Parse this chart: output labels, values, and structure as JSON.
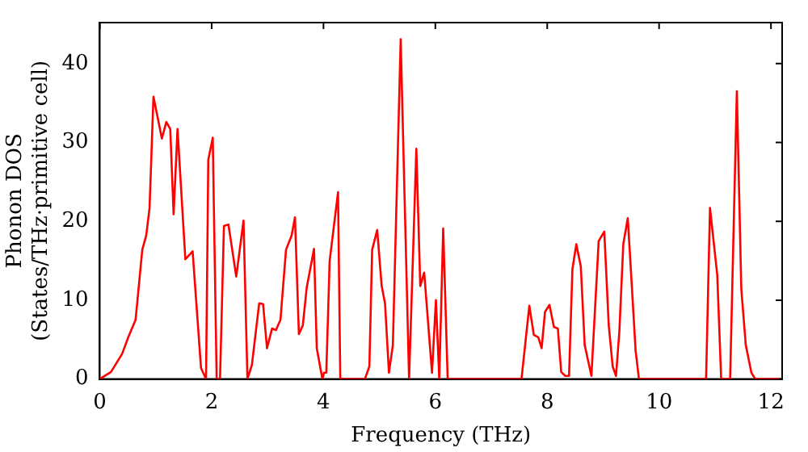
{
  "chart_data": {
    "type": "line",
    "xlabel": "Frequency (THz)",
    "ylabel": "Phonon DOS\n(States/THz·primitive cell)",
    "x": [
      0,
      0.2,
      0.4,
      0.51,
      0.64,
      0.76,
      0.83,
      0.89,
      0.96,
      1.11,
      1.19,
      1.26,
      1.32,
      1.39,
      1.53,
      1.66,
      1.81,
      1.9,
      1.94,
      2.02,
      2.09,
      2.15,
      2.22,
      2.3,
      2.44,
      2.57,
      2.64,
      2.72,
      2.85,
      2.92,
      2.99,
      3.08,
      3.15,
      3.23,
      3.33,
      3.43,
      3.49,
      3.56,
      3.63,
      3.7,
      3.83,
      3.88,
      3.98,
      4.01,
      4.05,
      4.11,
      4.26,
      4.3,
      4.74,
      4.82,
      4.87,
      4.96,
      5.04,
      5.1,
      5.17,
      5.24,
      5.38,
      5.53,
      5.66,
      5.73,
      5.8,
      5.94,
      6.01,
      6.07,
      6.14,
      6.22,
      7.54,
      7.68,
      7.76,
      7.84,
      7.9,
      7.96,
      8.04,
      8.12,
      8.19,
      8.25,
      8.32,
      8.39,
      8.45,
      8.52,
      8.6,
      8.67,
      8.79,
      8.92,
      9.02,
      9.1,
      9.17,
      9.23,
      9.29,
      9.36,
      9.44,
      9.51,
      9.58,
      9.64,
      10.84,
      10.91,
      11.04,
      11.11,
      11.27,
      11.39,
      11.47,
      11.55,
      11.65,
      11.72,
      12.15
    ],
    "series": [
      {
        "color": "#ff0000",
        "values": [
          0,
          0.9,
          3.2,
          5.3,
          7.5,
          16.4,
          18.2,
          21.7,
          35.8,
          30.5,
          32.6,
          31.7,
          20.9,
          31.7,
          15.2,
          16.2,
          1.4,
          0,
          27.8,
          30.6,
          0,
          0,
          19.4,
          19.6,
          13,
          20.1,
          0,
          1.8,
          9.6,
          9.5,
          3.9,
          6.4,
          6.2,
          7.5,
          16.4,
          18.2,
          20.5,
          5.7,
          6.8,
          11.6,
          16.5,
          3.9,
          0,
          0.8,
          0.8,
          15,
          23.7,
          0,
          0,
          1.6,
          16.4,
          18.9,
          11.8,
          9.6,
          0.8,
          4.3,
          43.1,
          0,
          29.2,
          11.8,
          13.5,
          0.8,
          10,
          0,
          19.1,
          0,
          0,
          9.3,
          5.6,
          5.3,
          3.9,
          8.5,
          9.4,
          6.6,
          6.4,
          0.9,
          0.4,
          0.4,
          13.9,
          17.1,
          14.3,
          4.3,
          0.4,
          17.5,
          18.7,
          6.8,
          1.6,
          0.4,
          6.1,
          17.1,
          20.4,
          12.1,
          3.6,
          0,
          0,
          21.7,
          13.2,
          0,
          0,
          36.5,
          11.4,
          4.3,
          0.8,
          0,
          0
        ]
      }
    ],
    "xlim": [
      0,
      12.2
    ],
    "xticks": [
      0,
      2,
      4,
      6,
      8,
      10,
      12
    ],
    "ylim": [
      0,
      45.2
    ],
    "yticks": [
      0,
      10,
      20,
      30,
      40
    ],
    "grid": false,
    "legend": false,
    "marker": "none",
    "line_style": "solid"
  }
}
